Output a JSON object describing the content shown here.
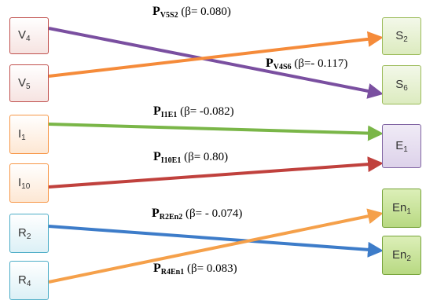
{
  "nodes": {
    "v4": {
      "base": "V",
      "sub": "4"
    },
    "v5": {
      "base": "V",
      "sub": "5"
    },
    "i1": {
      "base": "I",
      "sub": "1"
    },
    "i10": {
      "base": "I",
      "sub": "10"
    },
    "r2": {
      "base": "R",
      "sub": "2"
    },
    "r4": {
      "base": "R",
      "sub": "4"
    },
    "s2": {
      "base": "S",
      "sub": "2"
    },
    "s6": {
      "base": "S",
      "sub": "6"
    },
    "e1": {
      "base": "E",
      "sub": "1"
    },
    "en1": {
      "base": "En",
      "sub": "1"
    },
    "en2": {
      "base": "En",
      "sub": "2"
    }
  },
  "paths": [
    {
      "id": "pv5s2",
      "p": "P",
      "sub": "V5S2",
      "beta": "(β= 0.080)",
      "from": "v5",
      "to": "s2",
      "color": "#f58b3a"
    },
    {
      "id": "pv4s6",
      "p": "P",
      "sub": "V4S6",
      "beta": "(β=- 0.117)",
      "from": "v4",
      "to": "s6",
      "color": "#7a4fa0"
    },
    {
      "id": "pi1e1",
      "p": "P",
      "sub": "I1E1",
      "beta": "(β= -0.082)",
      "from": "i1",
      "to": "e1",
      "color": "#7ab648"
    },
    {
      "id": "pi10e1",
      "p": "P",
      "sub": "I10E1",
      "beta": "(β= 0.80)",
      "from": "i10",
      "to": "e1",
      "color": "#c0413d"
    },
    {
      "id": "pr2en2",
      "p": "P",
      "sub": "R2En2",
      "beta": "(β= - 0.074)",
      "from": "r2",
      "to": "en2",
      "color": "#3d7cc9"
    },
    {
      "id": "pr4en1",
      "p": "P",
      "sub": "R4En1",
      "beta": "(β= 0.083)",
      "from": "r4",
      "to": "en1",
      "color": "#f5a04a"
    }
  ]
}
